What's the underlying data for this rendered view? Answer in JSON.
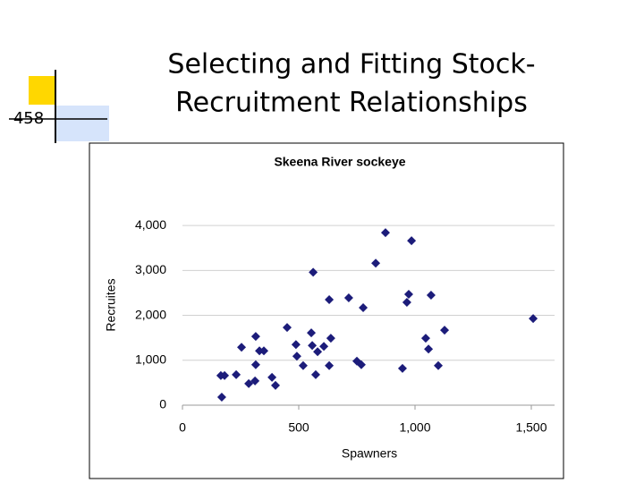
{
  "slide": {
    "number": "458",
    "title_lines": [
      "Selecting and Fitting Stock-",
      "Recruitment Relationships"
    ]
  },
  "chart_data": {
    "type": "scatter",
    "title": "Skeena River sockeye",
    "x_label": "Spawners",
    "y_label": "Recruites",
    "color": "#1c1c7a",
    "grid": true,
    "xlim": [
      0,
      1600
    ],
    "ylim": [
      0,
      4500
    ],
    "xticks": [
      0,
      500,
      {
        "value": 1000,
        "label": "1,000"
      },
      {
        "value": 1500,
        "label": "1,500"
      }
    ],
    "yticks": [
      0,
      {
        "value": 1000,
        "label": "1,000"
      },
      {
        "value": 2000,
        "label": "2,000"
      },
      {
        "value": 3000,
        "label": "3,000"
      },
      {
        "value": 4000,
        "label": "4,000"
      }
    ],
    "x": [
      165,
      181,
      169,
      231,
      254,
      285,
      312,
      315,
      315,
      331,
      350,
      385,
      400,
      450,
      488,
      492,
      519,
      554,
      558,
      562,
      573,
      581,
      608,
      631,
      638,
      631,
      715,
      750,
      769,
      777,
      831,
      873,
      946,
      965,
      973,
      985,
      1046,
      1058,
      1069,
      1100,
      1127,
      1508
    ],
    "values": [
      660,
      660,
      180,
      680,
      1290,
      480,
      540,
      1530,
      900,
      1210,
      1210,
      620,
      440,
      1730,
      1350,
      1090,
      880,
      1610,
      1330,
      2960,
      680,
      1190,
      1310,
      880,
      1490,
      2350,
      2390,
      980,
      900,
      2170,
      3160,
      3840,
      820,
      2290,
      2470,
      3660,
      1490,
      1250,
      2450,
      880,
      1670,
      1930
    ]
  }
}
